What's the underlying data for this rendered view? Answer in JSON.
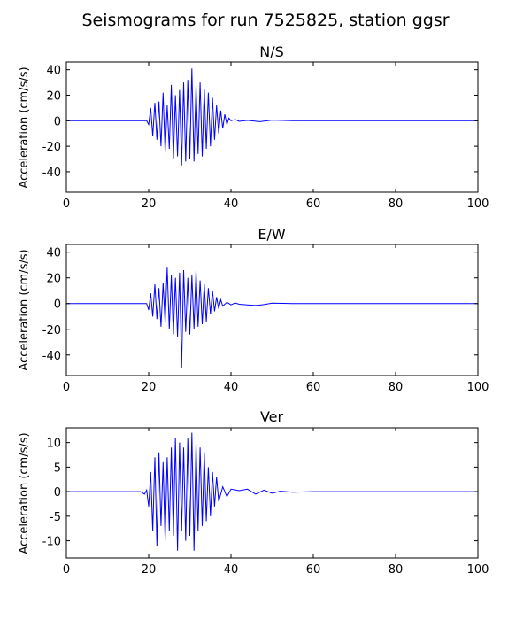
{
  "chart_data": {
    "type": "line",
    "title": "Seismograms for run 7525825, station ggsr",
    "line_color": "#0000ff",
    "panels": [
      {
        "title": "N/S",
        "ylabel": "Acceleration (cm/s/s)",
        "xlim": [
          0,
          100
        ],
        "ylim": [
          -56,
          46
        ],
        "xticks": [
          0,
          20,
          40,
          60,
          80,
          100
        ],
        "yticks": [
          -40,
          -20,
          0,
          20,
          40
        ],
        "grid": false,
        "series": [
          {
            "x": [
              0,
              19.5,
              20,
              20.5,
              21,
              21.5,
              22,
              22.5,
              23,
              23.5,
              24,
              24.5,
              25,
              25.5,
              26,
              26.5,
              27,
              27.5,
              28,
              28.5,
              29,
              29.5,
              30,
              30.5,
              31,
              31.5,
              32,
              32.5,
              33,
              33.5,
              34,
              34.5,
              35,
              35.5,
              36,
              36.5,
              37,
              37.5,
              38,
              38.5,
              39,
              39.5,
              40,
              41,
              42,
              44,
              47,
              50,
              55,
              60,
              100
            ],
            "y": [
              0,
              0,
              -3,
              10,
              -12,
              14,
              -15,
              15,
              -20,
              22,
              -25,
              12,
              -22,
              28,
              -30,
              20,
              -28,
              24,
              -35,
              30,
              -32,
              32,
              -30,
              41,
              -32,
              28,
              -26,
              30,
              -28,
              25,
              -22,
              22,
              -20,
              18,
              -15,
              12,
              -10,
              8,
              -6,
              5,
              -3,
              2,
              0,
              1,
              -0.5,
              0.3,
              -0.8,
              0.5,
              0,
              0,
              0
            ]
          }
        ]
      },
      {
        "title": "E/W",
        "ylabel": "Acceleration (cm/s/s)",
        "xlim": [
          0,
          100
        ],
        "ylim": [
          -56,
          46
        ],
        "xticks": [
          0,
          20,
          40,
          60,
          80,
          100
        ],
        "yticks": [
          -40,
          -20,
          0,
          20,
          40
        ],
        "grid": false,
        "series": [
          {
            "x": [
              0,
              19.5,
              20,
              20.5,
              21,
              21.5,
              22,
              22.5,
              23,
              23.5,
              24,
              24.5,
              25,
              25.5,
              26,
              26.5,
              27,
              27.5,
              28,
              28.5,
              29,
              29.5,
              30,
              30.5,
              31,
              31.5,
              32,
              32.5,
              33,
              33.5,
              34,
              34.5,
              35,
              35.5,
              36,
              36.5,
              37,
              37.5,
              38,
              39,
              40,
              41,
              42,
              44,
              46,
              48,
              50,
              55,
              60,
              100
            ],
            "y": [
              0,
              0,
              -5,
              8,
              -10,
              15,
              -12,
              12,
              -18,
              16,
              -15,
              28,
              -20,
              22,
              -24,
              20,
              -26,
              24,
              -50,
              26,
              -22,
              20,
              -24,
              22,
              -20,
              26,
              -18,
              18,
              -16,
              15,
              -14,
              12,
              -8,
              10,
              -6,
              5,
              -4,
              3,
              -2,
              1,
              -1,
              0.5,
              -0.5,
              -1,
              -1.5,
              -0.8,
              0.3,
              0,
              0,
              0
            ]
          }
        ]
      },
      {
        "title": "Ver",
        "ylabel": "Acceleration (cm/s/s)",
        "xlim": [
          0,
          100
        ],
        "ylim": [
          -13.5,
          13
        ],
        "xticks": [
          0,
          20,
          40,
          60,
          80,
          100
        ],
        "yticks": [
          -10,
          -5,
          0,
          5,
          10
        ],
        "grid": false,
        "series": [
          {
            "x": [
              0,
              18,
              19,
              19.5,
              20,
              20.5,
              21,
              21.5,
              22,
              22.5,
              23,
              23.5,
              24,
              24.5,
              25,
              25.5,
              26,
              26.5,
              27,
              27.5,
              28,
              28.5,
              29,
              29.5,
              30,
              30.5,
              31,
              31.5,
              32,
              32.5,
              33,
              33.5,
              34,
              34.5,
              35,
              35.5,
              36,
              36.5,
              37,
              38,
              39,
              40,
              42,
              44,
              46,
              48,
              50,
              52,
              55,
              60,
              100
            ],
            "y": [
              0,
              0,
              -0.5,
              0.3,
              -3,
              4,
              -8,
              7,
              -11,
              8,
              -7,
              6,
              -10,
              7,
              -8,
              9,
              -9,
              11,
              -12,
              10,
              -8,
              9,
              -10,
              11,
              -9,
              12,
              -12,
              10,
              -8,
              9,
              -7,
              8,
              -6,
              5,
              -5,
              4,
              -3,
              3,
              -2,
              1,
              -1,
              0.5,
              0.2,
              0.5,
              -0.5,
              0.3,
              -0.3,
              0.1,
              -0.1,
              0,
              0
            ]
          }
        ]
      }
    ]
  }
}
